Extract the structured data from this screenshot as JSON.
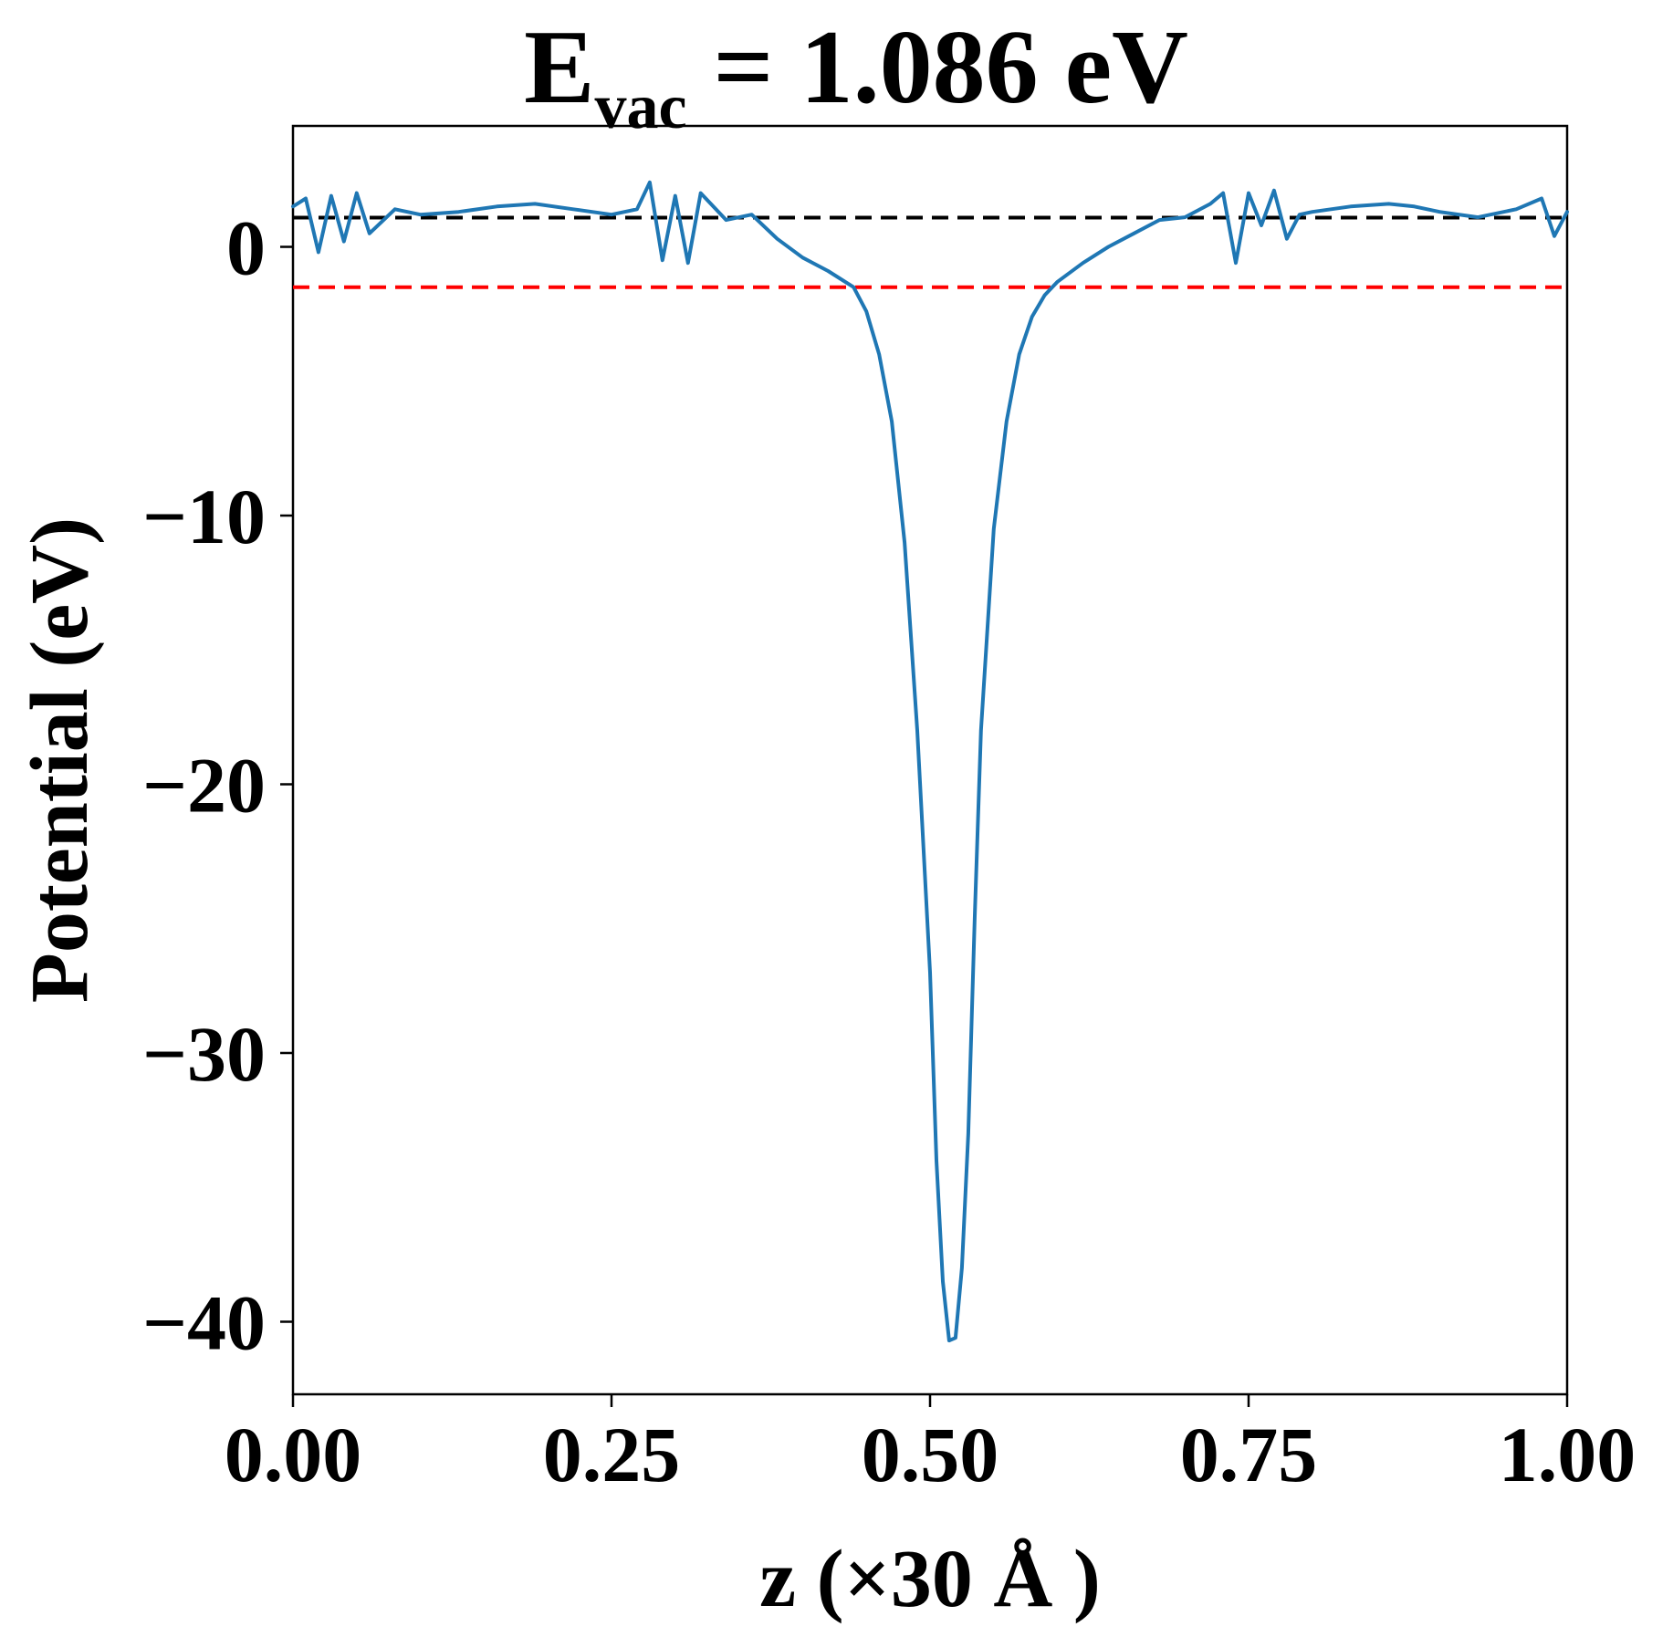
{
  "chart_data": {
    "type": "line",
    "title": {
      "main": "E",
      "subscript": "vac",
      "rest": " = 1.086 eV"
    },
    "xlabel": "z (×30 Å )",
    "ylabel": "Potential (eV)",
    "xlim": [
      0.0,
      1.0
    ],
    "ylim": [
      -42.7,
      4.5
    ],
    "xticks": [
      {
        "value": 0.0,
        "label": "0.00"
      },
      {
        "value": 0.25,
        "label": "0.25"
      },
      {
        "value": 0.5,
        "label": "0.50"
      },
      {
        "value": 0.75,
        "label": "0.75"
      },
      {
        "value": 1.0,
        "label": "1.00"
      }
    ],
    "yticks": [
      {
        "value": 0,
        "label": "0"
      },
      {
        "value": -10,
        "label": "−10"
      },
      {
        "value": -20,
        "label": "−20"
      },
      {
        "value": -30,
        "label": "−30"
      },
      {
        "value": -40,
        "label": "−40"
      }
    ],
    "grid": false,
    "reference_lines": [
      {
        "y": 1.086,
        "color": "#000000",
        "style": "dashed"
      },
      {
        "y": -1.5,
        "color": "#ff0000",
        "style": "dashed"
      }
    ],
    "series": [
      {
        "color": "#1f77b4",
        "x": [
          0.0,
          0.01,
          0.02,
          0.03,
          0.04,
          0.05,
          0.06,
          0.08,
          0.1,
          0.13,
          0.16,
          0.19,
          0.22,
          0.25,
          0.27,
          0.28,
          0.29,
          0.3,
          0.31,
          0.32,
          0.34,
          0.36,
          0.38,
          0.4,
          0.42,
          0.44,
          0.45,
          0.46,
          0.47,
          0.48,
          0.49,
          0.5,
          0.505,
          0.51,
          0.515,
          0.52,
          0.525,
          0.53,
          0.535,
          0.54,
          0.55,
          0.56,
          0.57,
          0.58,
          0.59,
          0.6,
          0.62,
          0.64,
          0.66,
          0.68,
          0.7,
          0.72,
          0.73,
          0.74,
          0.75,
          0.76,
          0.77,
          0.78,
          0.79,
          0.8,
          0.83,
          0.86,
          0.88,
          0.9,
          0.93,
          0.96,
          0.98,
          0.99,
          1.0
        ],
        "y": [
          1.5,
          1.8,
          -0.2,
          1.9,
          0.2,
          2.0,
          0.5,
          1.4,
          1.2,
          1.3,
          1.5,
          1.6,
          1.4,
          1.2,
          1.4,
          2.4,
          -0.5,
          1.9,
          -0.6,
          2.0,
          1.0,
          1.2,
          0.3,
          -0.4,
          -0.9,
          -1.5,
          -2.4,
          -4.0,
          -6.5,
          -11.0,
          -18.0,
          -27.0,
          -34.0,
          -38.5,
          -40.7,
          -40.6,
          -38.0,
          -33.0,
          -25.0,
          -18.0,
          -10.5,
          -6.5,
          -4.0,
          -2.6,
          -1.8,
          -1.3,
          -0.6,
          0.0,
          0.5,
          1.0,
          1.1,
          1.6,
          2.0,
          -0.6,
          2.0,
          0.8,
          2.1,
          0.3,
          1.2,
          1.3,
          1.5,
          1.6,
          1.5,
          1.3,
          1.1,
          1.4,
          1.8,
          0.4,
          1.3
        ]
      }
    ]
  }
}
